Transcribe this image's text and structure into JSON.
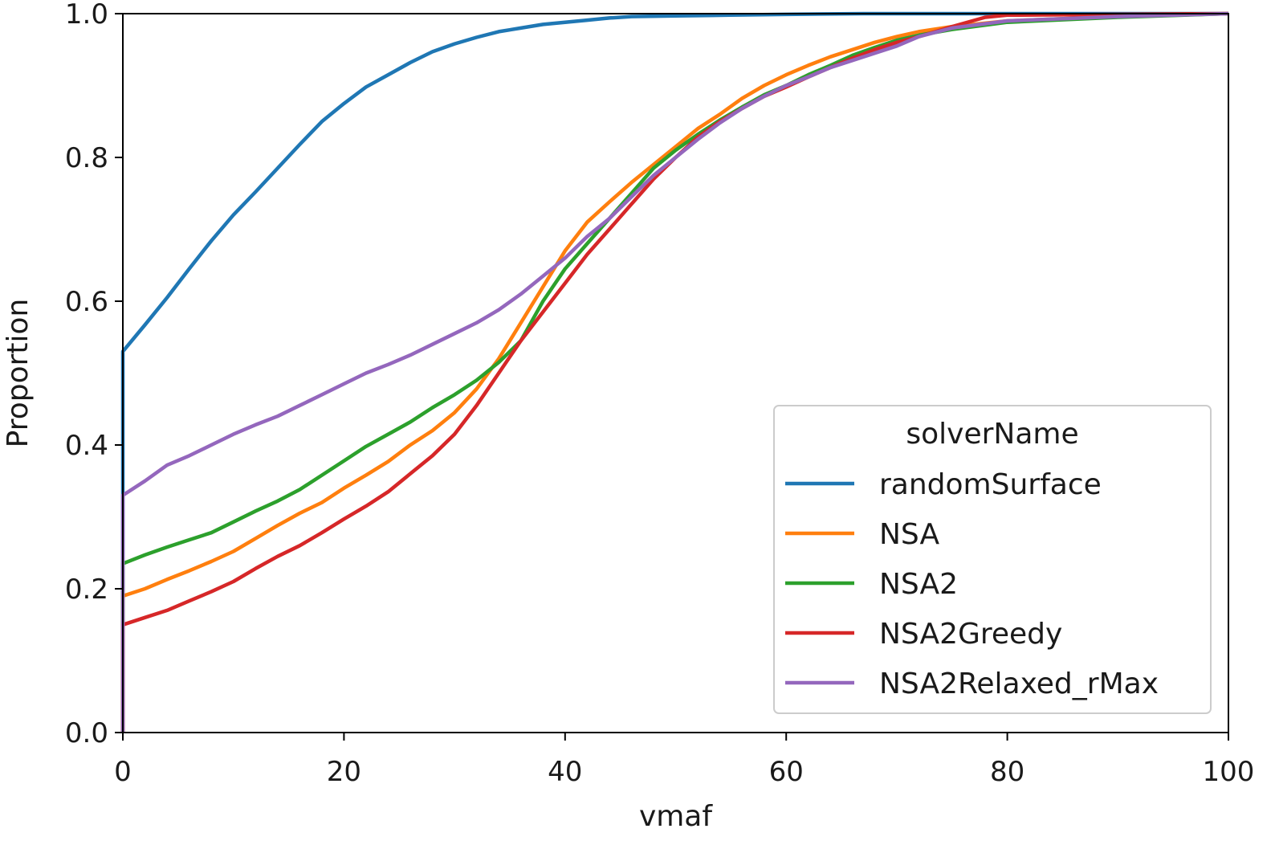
{
  "chart_data": {
    "type": "line",
    "xlabel": "vmaf",
    "ylabel": "Proportion",
    "xlim": [
      0,
      100
    ],
    "ylim": [
      0,
      1.0
    ],
    "x_ticks": [
      "0",
      "20",
      "40",
      "60",
      "80",
      "100"
    ],
    "y_ticks": [
      "0.0",
      "0.2",
      "0.4",
      "0.6",
      "0.8",
      "1.0"
    ],
    "grid": false,
    "legend": {
      "title": "solverName",
      "placement": "lower-right"
    },
    "series": [
      {
        "name": "randomSurface",
        "color": "#1f77b4",
        "points": [
          [
            0,
            0
          ],
          [
            0,
            0.53
          ],
          [
            2,
            0.567
          ],
          [
            4,
            0.605
          ],
          [
            6,
            0.645
          ],
          [
            8,
            0.684
          ],
          [
            10,
            0.72
          ],
          [
            12,
            0.752
          ],
          [
            14,
            0.785
          ],
          [
            16,
            0.818
          ],
          [
            18,
            0.85
          ],
          [
            20,
            0.875
          ],
          [
            22,
            0.898
          ],
          [
            24,
            0.915
          ],
          [
            26,
            0.932
          ],
          [
            28,
            0.947
          ],
          [
            30,
            0.958
          ],
          [
            32,
            0.967
          ],
          [
            34,
            0.975
          ],
          [
            36,
            0.98
          ],
          [
            38,
            0.985
          ],
          [
            40,
            0.988
          ],
          [
            42,
            0.991
          ],
          [
            44,
            0.994
          ],
          [
            46,
            0.996
          ],
          [
            50,
            0.997
          ],
          [
            55,
            0.998
          ],
          [
            60,
            0.999
          ],
          [
            67,
            1.0
          ],
          [
            100,
            1.0
          ]
        ]
      },
      {
        "name": "NSA",
        "color": "#ff7f0e",
        "points": [
          [
            0,
            0
          ],
          [
            0,
            0.19
          ],
          [
            2,
            0.2
          ],
          [
            4,
            0.213
          ],
          [
            6,
            0.225
          ],
          [
            8,
            0.238
          ],
          [
            10,
            0.252
          ],
          [
            12,
            0.27
          ],
          [
            14,
            0.288
          ],
          [
            16,
            0.305
          ],
          [
            18,
            0.32
          ],
          [
            20,
            0.34
          ],
          [
            22,
            0.358
          ],
          [
            24,
            0.377
          ],
          [
            26,
            0.4
          ],
          [
            28,
            0.42
          ],
          [
            30,
            0.445
          ],
          [
            32,
            0.478
          ],
          [
            34,
            0.52
          ],
          [
            36,
            0.57
          ],
          [
            38,
            0.62
          ],
          [
            40,
            0.67
          ],
          [
            42,
            0.71
          ],
          [
            44,
            0.738
          ],
          [
            46,
            0.765
          ],
          [
            48,
            0.79
          ],
          [
            50,
            0.815
          ],
          [
            52,
            0.84
          ],
          [
            54,
            0.86
          ],
          [
            56,
            0.882
          ],
          [
            58,
            0.9
          ],
          [
            60,
            0.915
          ],
          [
            62,
            0.928
          ],
          [
            64,
            0.94
          ],
          [
            66,
            0.95
          ],
          [
            68,
            0.96
          ],
          [
            70,
            0.968
          ],
          [
            72,
            0.975
          ],
          [
            75,
            0.982
          ],
          [
            80,
            0.99
          ],
          [
            90,
            0.996
          ],
          [
            100,
            1.0
          ]
        ]
      },
      {
        "name": "NSA2",
        "color": "#2ca02c",
        "points": [
          [
            0,
            0
          ],
          [
            0,
            0.235
          ],
          [
            2,
            0.247
          ],
          [
            4,
            0.258
          ],
          [
            6,
            0.268
          ],
          [
            8,
            0.278
          ],
          [
            10,
            0.293
          ],
          [
            12,
            0.308
          ],
          [
            14,
            0.322
          ],
          [
            16,
            0.338
          ],
          [
            18,
            0.358
          ],
          [
            20,
            0.378
          ],
          [
            22,
            0.398
          ],
          [
            24,
            0.415
          ],
          [
            26,
            0.432
          ],
          [
            28,
            0.452
          ],
          [
            30,
            0.47
          ],
          [
            32,
            0.49
          ],
          [
            34,
            0.515
          ],
          [
            36,
            0.545
          ],
          [
            38,
            0.6
          ],
          [
            40,
            0.645
          ],
          [
            42,
            0.68
          ],
          [
            44,
            0.715
          ],
          [
            46,
            0.75
          ],
          [
            48,
            0.785
          ],
          [
            50,
            0.81
          ],
          [
            52,
            0.832
          ],
          [
            54,
            0.852
          ],
          [
            56,
            0.87
          ],
          [
            58,
            0.887
          ],
          [
            60,
            0.9
          ],
          [
            62,
            0.915
          ],
          [
            64,
            0.928
          ],
          [
            66,
            0.942
          ],
          [
            68,
            0.953
          ],
          [
            70,
            0.963
          ],
          [
            72,
            0.97
          ],
          [
            75,
            0.978
          ],
          [
            80,
            0.988
          ],
          [
            90,
            0.995
          ],
          [
            100,
            1.0
          ]
        ]
      },
      {
        "name": "NSA2Greedy",
        "color": "#d62728",
        "points": [
          [
            0,
            0
          ],
          [
            0,
            0.15
          ],
          [
            2,
            0.16
          ],
          [
            4,
            0.17
          ],
          [
            6,
            0.183
          ],
          [
            8,
            0.196
          ],
          [
            10,
            0.21
          ],
          [
            12,
            0.228
          ],
          [
            14,
            0.245
          ],
          [
            16,
            0.26
          ],
          [
            18,
            0.278
          ],
          [
            20,
            0.297
          ],
          [
            22,
            0.315
          ],
          [
            24,
            0.335
          ],
          [
            26,
            0.36
          ],
          [
            28,
            0.385
          ],
          [
            30,
            0.415
          ],
          [
            32,
            0.455
          ],
          [
            34,
            0.5
          ],
          [
            36,
            0.545
          ],
          [
            38,
            0.585
          ],
          [
            40,
            0.625
          ],
          [
            42,
            0.665
          ],
          [
            44,
            0.7
          ],
          [
            46,
            0.735
          ],
          [
            48,
            0.77
          ],
          [
            50,
            0.8
          ],
          [
            52,
            0.828
          ],
          [
            54,
            0.85
          ],
          [
            56,
            0.868
          ],
          [
            58,
            0.885
          ],
          [
            60,
            0.898
          ],
          [
            62,
            0.912
          ],
          [
            64,
            0.925
          ],
          [
            66,
            0.938
          ],
          [
            68,
            0.95
          ],
          [
            70,
            0.96
          ],
          [
            72,
            0.968
          ],
          [
            75,
            0.982
          ],
          [
            78,
            0.995
          ],
          [
            80,
            0.998
          ],
          [
            100,
            1.0
          ]
        ]
      },
      {
        "name": "NSA2Relaxed_rMax",
        "color": "#9467bd",
        "points": [
          [
            0,
            0
          ],
          [
            0,
            0.33
          ],
          [
            2,
            0.35
          ],
          [
            4,
            0.372
          ],
          [
            6,
            0.385
          ],
          [
            8,
            0.4
          ],
          [
            10,
            0.415
          ],
          [
            12,
            0.428
          ],
          [
            14,
            0.44
          ],
          [
            16,
            0.455
          ],
          [
            18,
            0.47
          ],
          [
            20,
            0.485
          ],
          [
            22,
            0.5
          ],
          [
            24,
            0.512
          ],
          [
            26,
            0.525
          ],
          [
            28,
            0.54
          ],
          [
            30,
            0.555
          ],
          [
            32,
            0.57
          ],
          [
            34,
            0.588
          ],
          [
            36,
            0.61
          ],
          [
            38,
            0.635
          ],
          [
            40,
            0.66
          ],
          [
            42,
            0.69
          ],
          [
            44,
            0.715
          ],
          [
            46,
            0.745
          ],
          [
            48,
            0.775
          ],
          [
            50,
            0.8
          ],
          [
            52,
            0.825
          ],
          [
            54,
            0.848
          ],
          [
            56,
            0.868
          ],
          [
            58,
            0.885
          ],
          [
            60,
            0.9
          ],
          [
            62,
            0.912
          ],
          [
            64,
            0.925
          ],
          [
            66,
            0.935
          ],
          [
            68,
            0.945
          ],
          [
            70,
            0.955
          ],
          [
            72,
            0.968
          ],
          [
            75,
            0.98
          ],
          [
            80,
            0.99
          ],
          [
            90,
            0.996
          ],
          [
            100,
            1.0
          ]
        ]
      }
    ]
  }
}
